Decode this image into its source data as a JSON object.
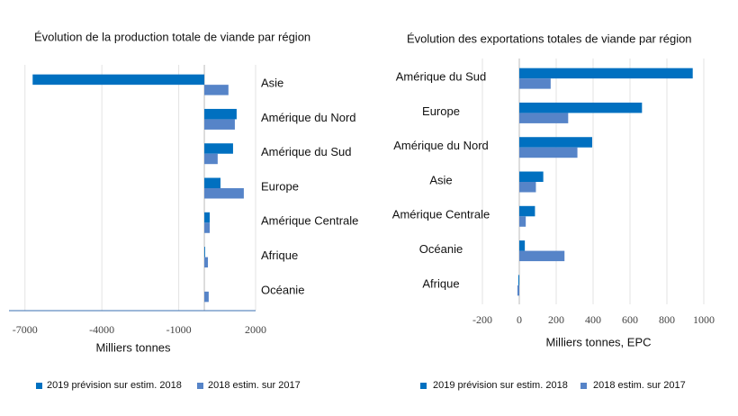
{
  "chart_data": [
    {
      "type": "bar",
      "orientation": "horizontal",
      "title": "Évolution de la production totale de viande par région",
      "categories": [
        "Asie",
        "Amérique du Nord",
        "Amérique du Sud",
        "Europe",
        "Amérique Centrale",
        "Afrique",
        "Océanie"
      ],
      "series": [
        {
          "name": "2019 prévision sur estim. 2018",
          "color": "#0070c0",
          "values": [
            -6700,
            1260,
            1120,
            630,
            210,
            30,
            0
          ]
        },
        {
          "name": "2018 estim. sur 2017",
          "color": "#5684c8",
          "values": [
            940,
            1190,
            520,
            1540,
            210,
            140,
            170
          ]
        }
      ],
      "xlim": [
        -7500,
        2000
      ],
      "xticks": [
        -7000,
        -4000,
        -1000,
        2000
      ],
      "xlabel": "Milliers tonnes",
      "grid": true
    },
    {
      "type": "bar",
      "orientation": "horizontal",
      "title": "Évolution des exportations totales de viande par région",
      "categories": [
        "Amérique du Sud",
        "Europe",
        "Amérique du Nord",
        "Asie",
        "Amérique Centrale",
        "Océanie",
        "Afrique"
      ],
      "series": [
        {
          "name": "2019 prévision sur estim. 2018",
          "color": "#0070c0",
          "values": [
            940,
            665,
            395,
            130,
            85,
            30,
            -5
          ]
        },
        {
          "name": "2018 estim. sur 2017",
          "color": "#5684c8",
          "values": [
            170,
            265,
            315,
            90,
            35,
            245,
            -10
          ]
        }
      ],
      "xlim": [
        -200,
        1000
      ],
      "xticks": [
        -200,
        0,
        200,
        400,
        600,
        800,
        1000
      ],
      "xlabel": "Milliers tonnes, EPC",
      "grid": true
    }
  ]
}
